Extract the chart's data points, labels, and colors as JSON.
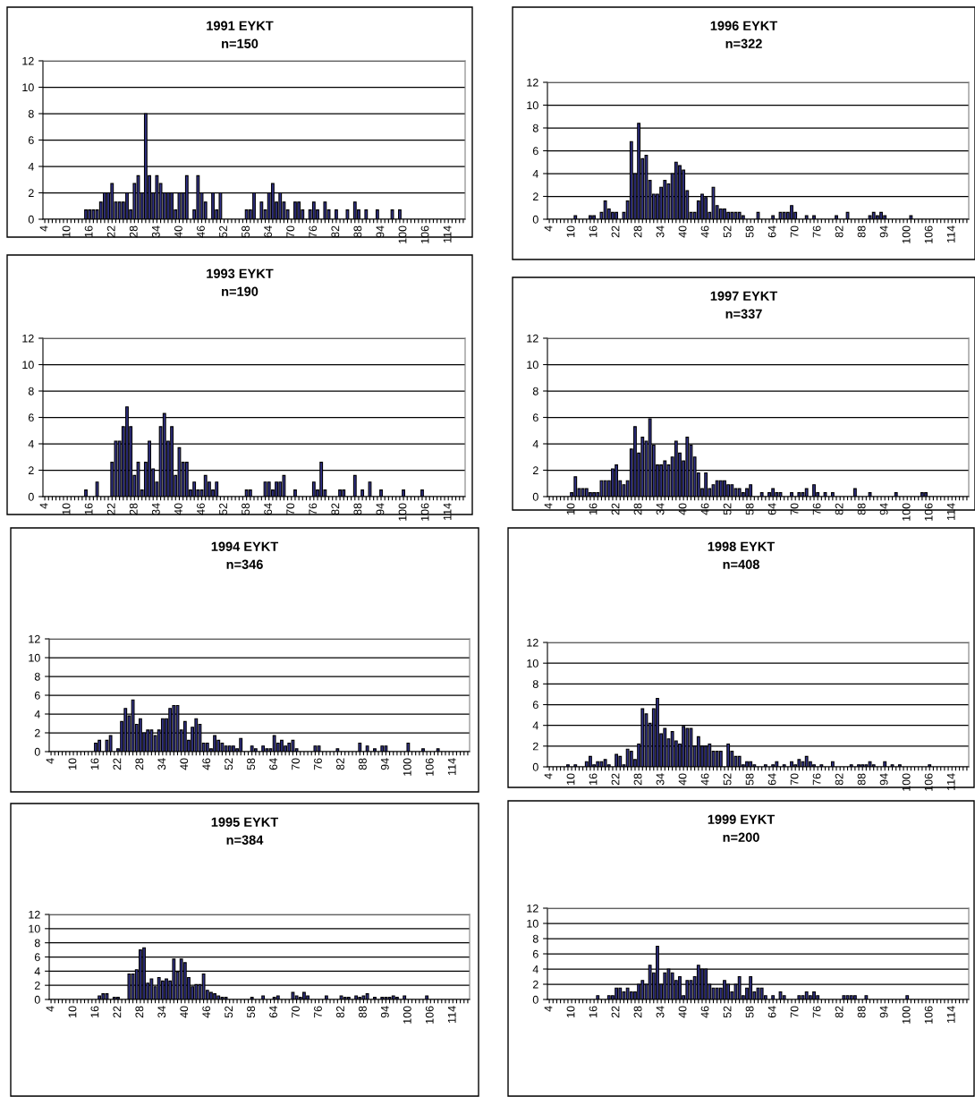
{
  "chart_data": [
    {
      "type": "bar",
      "title": "1991 EYKT",
      "subtitle": "n=150",
      "color": "#33338c",
      "ylim": [
        0,
        12
      ],
      "yticks": [
        0,
        2,
        4,
        6,
        8,
        10,
        12
      ],
      "grid": "y",
      "categories": [
        "4",
        null,
        null,
        null,
        null,
        null,
        "10",
        null,
        null,
        null,
        null,
        null,
        "16",
        null,
        null,
        null,
        null,
        null,
        "22",
        null,
        null,
        null,
        null,
        null,
        "28",
        null,
        null,
        null,
        null,
        null,
        "34",
        null,
        null,
        null,
        null,
        null,
        "40",
        null,
        null,
        null,
        null,
        null,
        "46",
        null,
        null,
        null,
        null,
        null,
        "52",
        null,
        null,
        null,
        null,
        null,
        "58",
        null,
        null,
        null,
        null,
        null,
        "64",
        null,
        null,
        null,
        null,
        null,
        "70",
        null,
        null,
        null,
        null,
        null,
        "76",
        null,
        null,
        null,
        null,
        null,
        "82",
        null,
        null,
        null,
        null,
        null,
        "88",
        null,
        null,
        null,
        null,
        null,
        "94",
        null,
        null,
        null,
        null,
        null,
        "100",
        null,
        null,
        null,
        null,
        null,
        "106",
        null,
        null,
        null,
        null,
        null,
        "114",
        null,
        null,
        null,
        null
      ],
      "values": [
        0,
        0,
        0,
        0,
        0,
        0,
        0,
        0,
        0,
        0,
        0,
        0.7,
        0.7,
        0.7,
        0.7,
        1.3,
        2,
        2,
        2.7,
        1.3,
        1.3,
        1.3,
        2,
        0.7,
        2.7,
        3.3,
        2,
        8,
        3.3,
        2,
        3.3,
        2.7,
        2,
        2,
        2,
        0.7,
        2,
        2,
        3.3,
        0,
        0.7,
        3.3,
        2,
        1.3,
        0,
        2,
        0.7,
        2,
        0,
        0,
        0,
        0,
        0,
        0,
        0.7,
        0.7,
        2,
        0,
        1.3,
        0.7,
        2,
        2.7,
        1.3,
        2,
        1.3,
        0.7,
        0,
        1.3,
        1.3,
        0.7,
        0,
        0.7,
        1.3,
        0.7,
        0,
        1.3,
        0.7,
        0,
        0.7,
        0,
        0,
        0.7,
        0,
        1.3,
        0.7,
        0,
        0.7,
        0,
        0,
        0.7,
        0,
        0,
        0,
        0.7,
        0,
        0.7,
        0,
        0,
        0,
        0,
        0,
        0,
        0,
        0,
        0,
        0,
        0,
        0,
        0,
        0,
        0,
        0,
        0
      ]
    },
    {
      "type": "bar",
      "title": "1996 EYKT",
      "subtitle": "n=322",
      "color": "#33338c",
      "ylim": [
        0,
        12
      ],
      "yticks": [
        0,
        2,
        4,
        6,
        8,
        10,
        12
      ],
      "grid": "y",
      "categories": [
        "4",
        null,
        null,
        null,
        null,
        null,
        "10",
        null,
        null,
        null,
        null,
        null,
        "16",
        null,
        null,
        null,
        null,
        null,
        "22",
        null,
        null,
        null,
        null,
        null,
        "28",
        null,
        null,
        null,
        null,
        null,
        "34",
        null,
        null,
        null,
        null,
        null,
        "40",
        null,
        null,
        null,
        null,
        null,
        "46",
        null,
        null,
        null,
        null,
        null,
        "52",
        null,
        null,
        null,
        null,
        null,
        "58",
        null,
        null,
        null,
        null,
        null,
        "64",
        null,
        null,
        null,
        null,
        null,
        "70",
        null,
        null,
        null,
        null,
        null,
        "76",
        null,
        null,
        null,
        null,
        null,
        "82",
        null,
        null,
        null,
        null,
        null,
        "88",
        null,
        null,
        null,
        null,
        null,
        "94",
        null,
        null,
        null,
        null,
        null,
        "100",
        null,
        null,
        null,
        null,
        null,
        "106",
        null,
        null,
        null,
        null,
        null,
        "114",
        null,
        null,
        null,
        null
      ],
      "values": [
        0,
        0,
        0,
        0,
        0,
        0,
        0,
        0.3,
        0,
        0,
        0,
        0.3,
        0.3,
        0,
        0.6,
        1.6,
        0.9,
        0.6,
        0.6,
        0,
        0.6,
        1.6,
        6.8,
        4.0,
        8.4,
        5.3,
        5.6,
        3.4,
        2.2,
        2.2,
        2.8,
        3.4,
        3.1,
        4.0,
        5.0,
        4.7,
        4.3,
        2.5,
        0.6,
        0.6,
        1.6,
        2.2,
        1.9,
        0.6,
        2.8,
        1.2,
        0.9,
        0.9,
        0.6,
        0.6,
        0.6,
        0.6,
        0.3,
        0,
        0,
        0,
        0.6,
        0,
        0,
        0,
        0.3,
        0,
        0.6,
        0.6,
        0.6,
        1.2,
        0.6,
        0,
        0,
        0.3,
        0,
        0.3,
        0,
        0,
        0,
        0,
        0,
        0.3,
        0,
        0,
        0.6,
        0,
        0,
        0,
        0,
        0,
        0.3,
        0.6,
        0.3,
        0.6,
        0.3,
        0,
        0,
        0,
        0,
        0,
        0,
        0.3,
        0,
        0,
        0,
        0,
        0,
        0,
        0,
        0,
        0,
        0,
        0,
        0,
        0,
        0,
        0
      ]
    },
    {
      "type": "bar",
      "title": "1993 EYKT",
      "subtitle": "n=190",
      "color": "#33338c",
      "ylim": [
        0,
        12
      ],
      "yticks": [
        0,
        2,
        4,
        6,
        8,
        10,
        12
      ],
      "grid": "y",
      "categories": [
        "4",
        null,
        null,
        null,
        null,
        null,
        "10",
        null,
        null,
        null,
        null,
        null,
        "16",
        null,
        null,
        null,
        null,
        null,
        "22",
        null,
        null,
        null,
        null,
        null,
        "28",
        null,
        null,
        null,
        null,
        null,
        "34",
        null,
        null,
        null,
        null,
        null,
        "40",
        null,
        null,
        null,
        null,
        null,
        "46",
        null,
        null,
        null,
        null,
        null,
        "52",
        null,
        null,
        null,
        null,
        null,
        "58",
        null,
        null,
        null,
        null,
        null,
        "64",
        null,
        null,
        null,
        null,
        null,
        "70",
        null,
        null,
        null,
        null,
        null,
        "76",
        null,
        null,
        null,
        null,
        null,
        "82",
        null,
        null,
        null,
        null,
        null,
        "88",
        null,
        null,
        null,
        null,
        null,
        "94",
        null,
        null,
        null,
        null,
        null,
        "100",
        null,
        null,
        null,
        null,
        null,
        "106",
        null,
        null,
        null,
        null,
        null,
        "114",
        null,
        null,
        null,
        null
      ],
      "values": [
        0,
        0,
        0,
        0,
        0,
        0,
        0,
        0,
        0,
        0,
        0,
        0.5,
        0,
        0,
        1.1,
        0,
        0,
        0,
        2.6,
        4.2,
        4.2,
        5.3,
        6.8,
        5.3,
        1.6,
        2.6,
        0.5,
        2.6,
        4.2,
        2.1,
        1.1,
        5.3,
        6.3,
        4.2,
        5.3,
        1.6,
        3.7,
        2.6,
        2.6,
        0.5,
        1.1,
        0.5,
        0.5,
        1.6,
        1.1,
        0.5,
        1.1,
        0,
        0,
        0,
        0,
        0,
        0,
        0,
        0.5,
        0.5,
        0,
        0,
        0,
        1.1,
        1.1,
        0.5,
        1.1,
        1.1,
        1.6,
        0,
        0,
        0.5,
        0,
        0,
        0,
        0,
        1.1,
        0.5,
        2.6,
        0.5,
        0,
        0,
        0,
        0.5,
        0.5,
        0,
        0,
        1.6,
        0,
        0.5,
        0,
        1.1,
        0,
        0,
        0.5,
        0,
        0,
        0,
        0,
        0,
        0.5,
        0,
        0,
        0,
        0,
        0.5,
        0,
        0,
        0,
        0,
        0,
        0,
        0,
        0,
        0,
        0,
        0
      ]
    },
    {
      "type": "bar",
      "title": "1997 EYKT",
      "subtitle": "n=337",
      "color": "#33338c",
      "ylim": [
        0,
        12
      ],
      "yticks": [
        0,
        2,
        4,
        6,
        8,
        10,
        12
      ],
      "grid": "y",
      "categories": [
        "4",
        null,
        null,
        null,
        null,
        null,
        "10",
        null,
        null,
        null,
        null,
        null,
        "16",
        null,
        null,
        null,
        null,
        null,
        "22",
        null,
        null,
        null,
        null,
        null,
        "28",
        null,
        null,
        null,
        null,
        null,
        "34",
        null,
        null,
        null,
        null,
        null,
        "40",
        null,
        null,
        null,
        null,
        null,
        "46",
        null,
        null,
        null,
        null,
        null,
        "52",
        null,
        null,
        null,
        null,
        null,
        "58",
        null,
        null,
        null,
        null,
        null,
        "64",
        null,
        null,
        null,
        null,
        null,
        "70",
        null,
        null,
        null,
        null,
        null,
        "76",
        null,
        null,
        null,
        null,
        null,
        "82",
        null,
        null,
        null,
        null,
        null,
        "88",
        null,
        null,
        null,
        null,
        null,
        "94",
        null,
        null,
        null,
        null,
        null,
        "100",
        null,
        null,
        null,
        null,
        null,
        "106",
        null,
        null,
        null,
        null,
        null,
        "114",
        null,
        null,
        null,
        null
      ],
      "values": [
        0,
        0,
        0,
        0,
        0,
        0,
        0.3,
        1.5,
        0.6,
        0.6,
        0.6,
        0.3,
        0.3,
        0.3,
        1.2,
        1.2,
        1.2,
        2.1,
        2.4,
        1.2,
        0.9,
        1.2,
        3.6,
        5.3,
        3.3,
        4.5,
        4.2,
        5.9,
        3.9,
        2.4,
        2.4,
        2.7,
        2.4,
        3.0,
        4.2,
        3.3,
        2.7,
        4.5,
        3.9,
        3.0,
        1.8,
        0.6,
        1.8,
        0.6,
        0.9,
        1.2,
        1.2,
        1.2,
        0.9,
        0.9,
        0.6,
        0.6,
        0.3,
        0.6,
        0.9,
        0,
        0,
        0.3,
        0,
        0.3,
        0.6,
        0.3,
        0.3,
        0,
        0,
        0.3,
        0,
        0.3,
        0.3,
        0.6,
        0,
        0.9,
        0.3,
        0,
        0.3,
        0,
        0.3,
        0,
        0,
        0,
        0,
        0,
        0.6,
        0,
        0,
        0,
        0.3,
        0,
        0,
        0,
        0,
        0,
        0,
        0.3,
        0,
        0,
        0,
        0,
        0,
        0,
        0.3,
        0.3,
        0,
        0,
        0,
        0,
        0,
        0,
        0,
        0,
        0,
        0,
        0
      ]
    },
    {
      "type": "bar",
      "title": "1994 EYKT",
      "subtitle": "n=346",
      "color": "#33338c",
      "ylim": [
        0,
        12
      ],
      "yticks": [
        0,
        2,
        4,
        6,
        8,
        10,
        12
      ],
      "grid": "y",
      "categories": [
        "4",
        null,
        null,
        null,
        null,
        null,
        "10",
        null,
        null,
        null,
        null,
        null,
        "16",
        null,
        null,
        null,
        null,
        null,
        "22",
        null,
        null,
        null,
        null,
        null,
        "28",
        null,
        null,
        null,
        null,
        null,
        "34",
        null,
        null,
        null,
        null,
        null,
        "40",
        null,
        null,
        null,
        null,
        null,
        "46",
        null,
        null,
        null,
        null,
        null,
        "52",
        null,
        null,
        null,
        null,
        null,
        "58",
        null,
        null,
        null,
        null,
        null,
        "64",
        null,
        null,
        null,
        null,
        null,
        "70",
        null,
        null,
        null,
        null,
        null,
        "76",
        null,
        null,
        null,
        null,
        null,
        "82",
        null,
        null,
        null,
        null,
        null,
        "88",
        null,
        null,
        null,
        null,
        null,
        "94",
        null,
        null,
        null,
        null,
        null,
        "100",
        null,
        null,
        null,
        null,
        null,
        "106",
        null,
        null,
        null,
        null,
        null,
        "114",
        null,
        null,
        null,
        null
      ],
      "values": [
        0,
        0,
        0,
        0,
        0,
        0,
        0,
        0,
        0,
        0,
        0,
        0,
        0.9,
        1.2,
        0,
        1.2,
        1.7,
        0,
        0.3,
        3.2,
        4.6,
        3.8,
        5.5,
        2.9,
        3.5,
        2.0,
        2.3,
        2.3,
        1.7,
        2.3,
        3.5,
        3.5,
        4.6,
        4.9,
        4.9,
        2.3,
        3.2,
        1.2,
        2.6,
        3.5,
        2.9,
        0.9,
        0.9,
        0.3,
        1.7,
        1.2,
        0.9,
        0.6,
        0.6,
        0.6,
        0.3,
        1.4,
        0,
        0,
        0.6,
        0.3,
        0,
        0.6,
        0.3,
        0.3,
        1.7,
        0.9,
        1.2,
        0.6,
        0.9,
        1.2,
        0.3,
        0,
        0,
        0,
        0,
        0.6,
        0.6,
        0,
        0,
        0,
        0,
        0.3,
        0,
        0,
        0,
        0,
        0,
        0.9,
        0,
        0.6,
        0,
        0.3,
        0,
        0.6,
        0.6,
        0,
        0,
        0,
        0,
        0,
        0.9,
        0,
        0,
        0,
        0.3,
        0,
        0,
        0,
        0.3,
        0,
        0,
        0,
        0,
        0,
        0,
        0,
        0
      ]
    },
    {
      "type": "bar",
      "title": "1998 EYKT",
      "subtitle": "n=408",
      "color": "#33338c",
      "ylim": [
        0,
        12
      ],
      "yticks": [
        0,
        2,
        4,
        6,
        8,
        10,
        12
      ],
      "grid": "y",
      "categories": [
        "4",
        null,
        null,
        null,
        null,
        null,
        "10",
        null,
        null,
        null,
        null,
        null,
        "16",
        null,
        null,
        null,
        null,
        null,
        "22",
        null,
        null,
        null,
        null,
        null,
        "28",
        null,
        null,
        null,
        null,
        null,
        "34",
        null,
        null,
        null,
        null,
        null,
        "40",
        null,
        null,
        null,
        null,
        null,
        "46",
        null,
        null,
        null,
        null,
        null,
        "52",
        null,
        null,
        null,
        null,
        null,
        "58",
        null,
        null,
        null,
        null,
        null,
        "64",
        null,
        null,
        null,
        null,
        null,
        "70",
        null,
        null,
        null,
        null,
        null,
        "76",
        null,
        null,
        null,
        null,
        null,
        "82",
        null,
        null,
        null,
        null,
        null,
        "88",
        null,
        null,
        null,
        null,
        null,
        "94",
        null,
        null,
        null,
        null,
        null,
        "100",
        null,
        null,
        null,
        null,
        null,
        "106",
        null,
        null,
        null,
        null,
        null,
        "114",
        null,
        null,
        null,
        null
      ],
      "values": [
        0,
        0,
        0,
        0,
        0,
        0.2,
        0,
        0.2,
        0,
        0,
        0.5,
        1.0,
        0.2,
        0.5,
        0.5,
        0.7,
        0.2,
        0,
        1.2,
        1.0,
        0.2,
        1.7,
        1.5,
        0.7,
        2.2,
        5.6,
        5.1,
        4.2,
        5.6,
        6.6,
        3.2,
        3.7,
        2.7,
        3.4,
        2.5,
        2.2,
        3.9,
        3.7,
        3.7,
        2.0,
        2.9,
        2.0,
        2.0,
        2.2,
        1.5,
        1.5,
        1.5,
        0,
        2.2,
        1.5,
        1.0,
        1.0,
        0.2,
        0.5,
        0.5,
        0.2,
        0,
        0,
        0.2,
        0,
        0.2,
        0.5,
        0,
        0.2,
        0,
        0.5,
        0.2,
        0.7,
        0.5,
        1.0,
        0.5,
        0.2,
        0,
        0.2,
        0,
        0,
        0.5,
        0,
        0,
        0,
        0,
        0.2,
        0,
        0.2,
        0.2,
        0.2,
        0.5,
        0.2,
        0,
        0,
        0.5,
        0,
        0.2,
        0,
        0.2,
        0,
        0,
        0,
        0,
        0,
        0,
        0,
        0.2,
        0,
        0,
        0,
        0,
        0,
        0,
        0,
        0,
        0,
        0
      ]
    },
    {
      "type": "bar",
      "title": "1995 EYKT",
      "subtitle": "n=384",
      "color": "#33338c",
      "ylim": [
        0,
        12
      ],
      "yticks": [
        0,
        2,
        4,
        6,
        8,
        10,
        12
      ],
      "grid": "y",
      "categories": [
        "4",
        null,
        null,
        null,
        null,
        null,
        "10",
        null,
        null,
        null,
        null,
        null,
        "16",
        null,
        null,
        null,
        null,
        null,
        "22",
        null,
        null,
        null,
        null,
        null,
        "28",
        null,
        null,
        null,
        null,
        null,
        "34",
        null,
        null,
        null,
        null,
        null,
        "40",
        null,
        null,
        null,
        null,
        null,
        "46",
        null,
        null,
        null,
        null,
        null,
        "52",
        null,
        null,
        null,
        null,
        null,
        "58",
        null,
        null,
        null,
        null,
        null,
        "64",
        null,
        null,
        null,
        null,
        null,
        "70",
        null,
        null,
        null,
        null,
        null,
        "76",
        null,
        null,
        null,
        null,
        null,
        "82",
        null,
        null,
        null,
        null,
        null,
        "88",
        null,
        null,
        null,
        null,
        null,
        "94",
        null,
        null,
        null,
        null,
        null,
        "100",
        null,
        null,
        null,
        null,
        null,
        "106",
        null,
        null,
        null,
        null,
        null,
        "114",
        null,
        null,
        null,
        null
      ],
      "values": [
        0,
        0,
        0,
        0,
        0,
        0,
        0,
        0,
        0,
        0,
        0,
        0,
        0,
        0.5,
        0.8,
        0.8,
        0,
        0.3,
        0.3,
        0,
        0,
        3.6,
        3.6,
        4.2,
        7.0,
        7.3,
        2.3,
        2.9,
        1.8,
        3.1,
        2.6,
        2.9,
        2.6,
        5.7,
        3.9,
        5.7,
        5.2,
        3.1,
        1.8,
        2.1,
        2.1,
        3.6,
        1.3,
        1.0,
        0.8,
        0.5,
        0.3,
        0.3,
        0,
        0,
        0,
        0,
        0,
        0,
        0.3,
        0,
        0,
        0.5,
        0,
        0,
        0.3,
        0.5,
        0,
        0,
        0,
        1.0,
        0.5,
        0.3,
        1.0,
        0.5,
        0,
        0,
        0,
        0,
        0.5,
        0,
        0,
        0,
        0.5,
        0.3,
        0.3,
        0,
        0.5,
        0.3,
        0.5,
        0.8,
        0,
        0.3,
        0,
        0.3,
        0.3,
        0.3,
        0.5,
        0.3,
        0,
        0.5,
        0,
        0,
        0,
        0,
        0,
        0.5,
        0,
        0,
        0,
        0,
        0,
        0,
        0,
        0,
        0,
        0,
        0
      ]
    },
    {
      "type": "bar",
      "title": "1999 EYKT",
      "subtitle": "n=200",
      "color": "#33338c",
      "ylim": [
        0,
        12
      ],
      "yticks": [
        0,
        2,
        4,
        6,
        8,
        10,
        12
      ],
      "grid": "y",
      "categories": [
        "4",
        null,
        null,
        null,
        null,
        null,
        "10",
        null,
        null,
        null,
        null,
        null,
        "16",
        null,
        null,
        null,
        null,
        null,
        "22",
        null,
        null,
        null,
        null,
        null,
        "28",
        null,
        null,
        null,
        null,
        null,
        "34",
        null,
        null,
        null,
        null,
        null,
        "40",
        null,
        null,
        null,
        null,
        null,
        "46",
        null,
        null,
        null,
        null,
        null,
        "52",
        null,
        null,
        null,
        null,
        null,
        "58",
        null,
        null,
        null,
        null,
        null,
        "64",
        null,
        null,
        null,
        null,
        null,
        "70",
        null,
        null,
        null,
        null,
        null,
        "76",
        null,
        null,
        null,
        null,
        null,
        "82",
        null,
        null,
        null,
        null,
        null,
        "88",
        null,
        null,
        null,
        null,
        null,
        "94",
        null,
        null,
        null,
        null,
        null,
        "100",
        null,
        null,
        null,
        null,
        null,
        "106",
        null,
        null,
        null,
        null,
        null,
        "114",
        null,
        null,
        null,
        null
      ],
      "values": [
        0,
        0,
        0,
        0,
        0,
        0,
        0,
        0,
        0,
        0,
        0,
        0,
        0,
        0.5,
        0,
        0,
        0.5,
        0.5,
        1.5,
        1.5,
        1.0,
        1.5,
        1.0,
        1.0,
        2.0,
        2.5,
        2.0,
        4.5,
        3.5,
        7.0,
        2.0,
        3.5,
        4.0,
        3.5,
        2.5,
        3.0,
        0.5,
        2.5,
        2.5,
        3.0,
        4.5,
        4.0,
        4.0,
        2.0,
        1.5,
        1.5,
        1.5,
        2.5,
        2.0,
        1.0,
        2.0,
        3.0,
        0.5,
        1.5,
        3.0,
        1.0,
        1.5,
        1.5,
        0.5,
        0,
        0.5,
        0,
        1.0,
        0.5,
        0,
        0,
        0,
        0.5,
        0.5,
        1.0,
        0.5,
        1.0,
        0.5,
        0,
        0,
        0,
        0,
        0,
        0,
        0.5,
        0.5,
        0.5,
        0.5,
        0,
        0,
        0.5,
        0,
        0,
        0,
        0,
        0,
        0,
        0,
        0,
        0,
        0,
        0.5,
        0,
        0,
        0,
        0,
        0,
        0,
        0,
        0,
        0,
        0,
        0,
        0,
        0,
        0,
        0,
        0
      ]
    }
  ]
}
